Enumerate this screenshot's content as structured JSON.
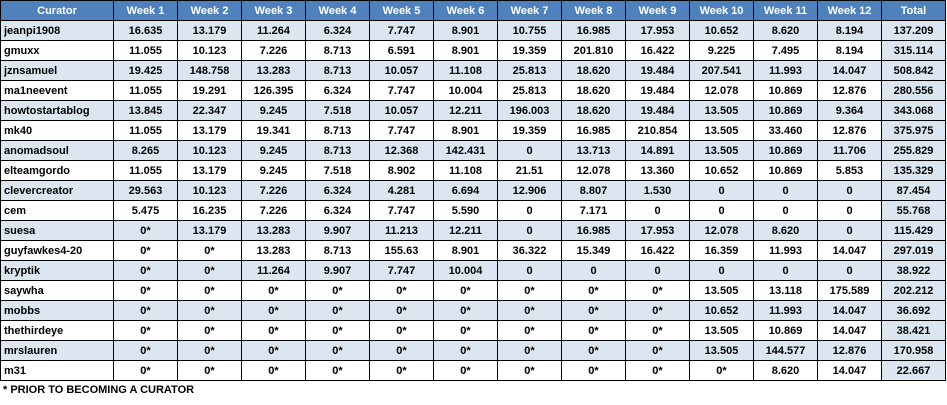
{
  "table": {
    "header": [
      "Curator",
      "Week 1",
      "Week 2",
      "Week 3",
      "Week 4",
      "Week 5",
      "Week 6",
      "Week 7",
      "Week 8",
      "Week 9",
      "Week 10",
      "Week 11",
      "Week 12",
      "Total"
    ],
    "rows": [
      [
        "jeanpi1908",
        "16.635",
        "13.179",
        "11.264",
        "6.324",
        "7.747",
        "8.901",
        "10.755",
        "16.985",
        "17.953",
        "10.652",
        "8.620",
        "8.194",
        "137.209"
      ],
      [
        "gmuxx",
        "11.055",
        "10.123",
        "7.226",
        "8.713",
        "6.591",
        "8.901",
        "19.359",
        "201.810",
        "16.422",
        "9.225",
        "7.495",
        "8.194",
        "315.114"
      ],
      [
        "jznsamuel",
        "19.425",
        "148.758",
        "13.283",
        "8.713",
        "10.057",
        "11.108",
        "25.813",
        "18.620",
        "19.484",
        "207.541",
        "11.993",
        "14.047",
        "508.842"
      ],
      [
        "ma1neevent",
        "11.055",
        "19.291",
        "126.395",
        "6.324",
        "7.747",
        "10.004",
        "25.813",
        "18.620",
        "19.484",
        "12.078",
        "10.869",
        "12.876",
        "280.556"
      ],
      [
        "howtostartablog",
        "13.845",
        "22.347",
        "9.245",
        "7.518",
        "10.057",
        "12.211",
        "196.003",
        "18.620",
        "19.484",
        "13.505",
        "10.869",
        "9.364",
        "343.068"
      ],
      [
        "mk40",
        "11.055",
        "13.179",
        "19.341",
        "8.713",
        "7.747",
        "8.901",
        "19.359",
        "16.985",
        "210.854",
        "13.505",
        "33.460",
        "12.876",
        "375.975"
      ],
      [
        "anomadsoul",
        "8.265",
        "10.123",
        "9.245",
        "8.713",
        "12.368",
        "142.431",
        "0",
        "13.713",
        "14.891",
        "13.505",
        "10.869",
        "11.706",
        "255.829"
      ],
      [
        "elteamgordo",
        "11.055",
        "13.179",
        "9.245",
        "7.518",
        "8.902",
        "11.108",
        "21.51",
        "12.078",
        "13.360",
        "10.652",
        "10.869",
        "5.853",
        "135.329"
      ],
      [
        "clevercreator",
        "29.563",
        "10.123",
        "7.226",
        "6.324",
        "4.281",
        "6.694",
        "12.906",
        "8.807",
        "1.530",
        "0",
        "0",
        "0",
        "87.454"
      ],
      [
        "cem",
        "5.475",
        "16.235",
        "7.226",
        "6.324",
        "7.747",
        "5.590",
        "0",
        "7.171",
        "0",
        "0",
        "0",
        "0",
        "55.768"
      ],
      [
        "suesa",
        "0*",
        "13.179",
        "13.283",
        "9.907",
        "11.213",
        "12.211",
        "0",
        "16.985",
        "17.953",
        "12.078",
        "8.620",
        "0",
        "115.429"
      ],
      [
        "guyfawkes4-20",
        "0*",
        "0*",
        "13.283",
        "8.713",
        "155.63",
        "8.901",
        "36.322",
        "15.349",
        "16.422",
        "16.359",
        "11.993",
        "14.047",
        "297.019"
      ],
      [
        "kryptik",
        "0*",
        "0*",
        "11.264",
        "9.907",
        "7.747",
        "10.004",
        "0",
        "0",
        "0",
        "0",
        "0",
        "0",
        "38.922"
      ],
      [
        "saywha",
        "0*",
        "0*",
        "0*",
        "0*",
        "0*",
        "0*",
        "0*",
        "0*",
        "0*",
        "13.505",
        "13.118",
        "175.589",
        "202.212"
      ],
      [
        "mobbs",
        "0*",
        "0*",
        "0*",
        "0*",
        "0*",
        "0*",
        "0*",
        "0*",
        "0*",
        "10.652",
        "11.993",
        "14.047",
        "36.692"
      ],
      [
        "thethirdeye",
        "0*",
        "0*",
        "0*",
        "0*",
        "0*",
        "0*",
        "0*",
        "0*",
        "0*",
        "13.505",
        "10.869",
        "14.047",
        "38.421"
      ],
      [
        "mrslauren",
        "0*",
        "0*",
        "0*",
        "0*",
        "0*",
        "0*",
        "0*",
        "0*",
        "0*",
        "13.505",
        "144.577",
        "12.876",
        "170.958"
      ],
      [
        "m31",
        "0*",
        "0*",
        "0*",
        "0*",
        "0*",
        "0*",
        "0*",
        "0*",
        "0*",
        "0*",
        "8.620",
        "14.047",
        "22.667"
      ]
    ],
    "footnote": "* PRIOR TO BECOMING A CURATOR"
  }
}
